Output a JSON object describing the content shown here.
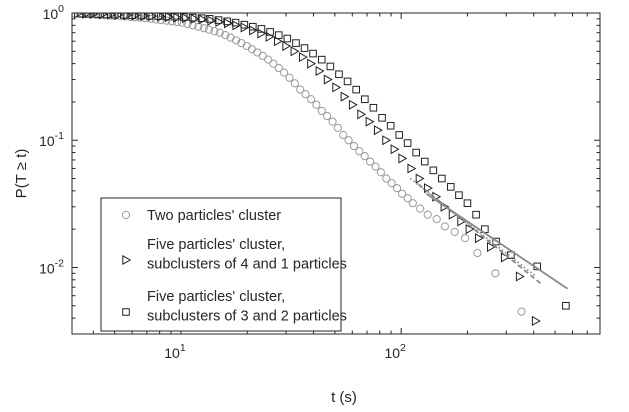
{
  "chart_data": {
    "type": "scatter",
    "title": "",
    "xlabel": "t (s)",
    "ylabel": "P(T ≥ t)",
    "xscale": "log",
    "yscale": "log",
    "xlim": [
      3.2,
      800
    ],
    "ylim": [
      0.003,
      1.0
    ],
    "grid": false,
    "legend_position": "bottom-left",
    "xticks": [
      {
        "value": 10,
        "base": "10",
        "exp": "1"
      },
      {
        "value": 100,
        "base": "10",
        "exp": "2"
      }
    ],
    "yticks": [
      {
        "value": 0.01,
        "base": "10",
        "exp": "-2"
      },
      {
        "value": 0.1,
        "base": "10",
        "exp": "-1"
      },
      {
        "value": 1,
        "base": "10",
        "exp": "0"
      }
    ],
    "series": [
      {
        "name": "Two particles' cluster",
        "marker": "circle",
        "color": "#9a9a9a",
        "points": [
          [
            3.3,
            0.99
          ],
          [
            3.5,
            0.985
          ],
          [
            3.7,
            0.98
          ],
          [
            3.9,
            0.975
          ],
          [
            4.1,
            0.97
          ],
          [
            4.3,
            0.965
          ],
          [
            4.5,
            0.96
          ],
          [
            4.8,
            0.955
          ],
          [
            5.0,
            0.95
          ],
          [
            5.3,
            0.945
          ],
          [
            5.6,
            0.94
          ],
          [
            5.9,
            0.93
          ],
          [
            6.2,
            0.925
          ],
          [
            6.5,
            0.92
          ],
          [
            6.9,
            0.91
          ],
          [
            7.3,
            0.9
          ],
          [
            7.7,
            0.89
          ],
          [
            8.1,
            0.88
          ],
          [
            8.6,
            0.87
          ],
          [
            9.1,
            0.86
          ],
          [
            9.6,
            0.85
          ],
          [
            10.1,
            0.84
          ],
          [
            10.7,
            0.82
          ],
          [
            11.3,
            0.8
          ],
          [
            12.0,
            0.78
          ],
          [
            12.7,
            0.76
          ],
          [
            13.4,
            0.74
          ],
          [
            14.2,
            0.72
          ],
          [
            15.0,
            0.7
          ],
          [
            15.9,
            0.67
          ],
          [
            16.8,
            0.64
          ],
          [
            17.8,
            0.61
          ],
          [
            18.8,
            0.58
          ],
          [
            19.9,
            0.55
          ],
          [
            21.0,
            0.52
          ],
          [
            22.2,
            0.49
          ],
          [
            23.5,
            0.46
          ],
          [
            24.9,
            0.43
          ],
          [
            26.3,
            0.4
          ],
          [
            27.8,
            0.37
          ],
          [
            29.4,
            0.34
          ],
          [
            31.1,
            0.31
          ],
          [
            32.9,
            0.28
          ],
          [
            34.8,
            0.25
          ],
          [
            36.8,
            0.23
          ],
          [
            39.0,
            0.21
          ],
          [
            41.2,
            0.19
          ],
          [
            43.6,
            0.17
          ],
          [
            46.1,
            0.155
          ],
          [
            48.8,
            0.14
          ],
          [
            51.6,
            0.125
          ],
          [
            54.6,
            0.11
          ],
          [
            57.7,
            0.1
          ],
          [
            61.1,
            0.09
          ],
          [
            64.6,
            0.082
          ],
          [
            68.3,
            0.075
          ],
          [
            72.3,
            0.068
          ],
          [
            76.5,
            0.062
          ],
          [
            80.9,
            0.056
          ],
          [
            85.6,
            0.05
          ],
          [
            90.5,
            0.046
          ],
          [
            95.8,
            0.042
          ],
          [
            101,
            0.038
          ],
          [
            107,
            0.035
          ],
          [
            113,
            0.032
          ],
          [
            122,
            0.029
          ],
          [
            132,
            0.026
          ],
          [
            145,
            0.024
          ],
          [
            158,
            0.021
          ],
          [
            175,
            0.019
          ],
          [
            195,
            0.017
          ],
          [
            222,
            0.013
          ],
          [
            268,
            0.009
          ],
          [
            352,
            0.0045
          ]
        ]
      },
      {
        "name": "Five particles' cluster, subclusters of 4 and 1 particles",
        "name_lines": [
          "Five particles' cluster,",
          "subclusters of 4 and 1 particles"
        ],
        "marker": "triangle-right",
        "color": "#222222",
        "points": [
          [
            3.4,
            0.99
          ],
          [
            3.7,
            0.985
          ],
          [
            4.0,
            0.98
          ],
          [
            4.4,
            0.975
          ],
          [
            4.8,
            0.97
          ],
          [
            5.2,
            0.965
          ],
          [
            5.7,
            0.96
          ],
          [
            6.2,
            0.955
          ],
          [
            6.8,
            0.95
          ],
          [
            7.4,
            0.945
          ],
          [
            8.1,
            0.94
          ],
          [
            8.8,
            0.93
          ],
          [
            9.6,
            0.92
          ],
          [
            10.5,
            0.91
          ],
          [
            11.5,
            0.9
          ],
          [
            12.5,
            0.89
          ],
          [
            13.7,
            0.87
          ],
          [
            14.9,
            0.85
          ],
          [
            16.3,
            0.83
          ],
          [
            17.8,
            0.8
          ],
          [
            19.4,
            0.77
          ],
          [
            21.2,
            0.73
          ],
          [
            23.1,
            0.69
          ],
          [
            25.2,
            0.65
          ],
          [
            27.5,
            0.6
          ],
          [
            30.0,
            0.55
          ],
          [
            32.7,
            0.5
          ],
          [
            35.7,
            0.45
          ],
          [
            38.9,
            0.4
          ],
          [
            42.5,
            0.35
          ],
          [
            46.3,
            0.3
          ],
          [
            50.6,
            0.26
          ],
          [
            55.2,
            0.22
          ],
          [
            60.2,
            0.19
          ],
          [
            65.7,
            0.16
          ],
          [
            71.7,
            0.14
          ],
          [
            78.2,
            0.12
          ],
          [
            85.3,
            0.1
          ],
          [
            93.1,
            0.085
          ],
          [
            101,
            0.072
          ],
          [
            111,
            0.06
          ],
          [
            121,
            0.05
          ],
          [
            132,
            0.042
          ],
          [
            144,
            0.036
          ],
          [
            157,
            0.03
          ],
          [
            171,
            0.026
          ],
          [
            187,
            0.023
          ],
          [
            204,
            0.02
          ],
          [
            225,
            0.017
          ],
          [
            255,
            0.0145
          ],
          [
            295,
            0.012
          ],
          [
            345,
            0.0085
          ],
          [
            408,
            0.0038
          ]
        ]
      },
      {
        "name": "Five particles' cluster, subclusters of 3 and 2 particles",
        "name_lines": [
          "Five particles' cluster,",
          "subclusters of 3 and 2 particles"
        ],
        "marker": "square",
        "color": "#222222",
        "points": [
          [
            3.5,
            0.99
          ],
          [
            3.8,
            0.985
          ],
          [
            4.2,
            0.98
          ],
          [
            4.6,
            0.975
          ],
          [
            5.0,
            0.97
          ],
          [
            5.5,
            0.965
          ],
          [
            6.0,
            0.96
          ],
          [
            6.6,
            0.955
          ],
          [
            7.2,
            0.95
          ],
          [
            7.9,
            0.945
          ],
          [
            8.6,
            0.94
          ],
          [
            9.4,
            0.935
          ],
          [
            10.3,
            0.93
          ],
          [
            11.3,
            0.92
          ],
          [
            12.4,
            0.91
          ],
          [
            13.5,
            0.9
          ],
          [
            14.8,
            0.88
          ],
          [
            16.2,
            0.86
          ],
          [
            17.7,
            0.84
          ],
          [
            19.4,
            0.81
          ],
          [
            21.2,
            0.78
          ],
          [
            23.2,
            0.75
          ],
          [
            25.4,
            0.71
          ],
          [
            27.8,
            0.67
          ],
          [
            30.4,
            0.63
          ],
          [
            33.3,
            0.58
          ],
          [
            36.4,
            0.53
          ],
          [
            39.8,
            0.48
          ],
          [
            43.6,
            0.43
          ],
          [
            47.7,
            0.38
          ],
          [
            52.2,
            0.33
          ],
          [
            57.1,
            0.29
          ],
          [
            62.5,
            0.25
          ],
          [
            68.4,
            0.21
          ],
          [
            74.8,
            0.18
          ],
          [
            81.9,
            0.15
          ],
          [
            89.6,
            0.13
          ],
          [
            98.0,
            0.11
          ],
          [
            107,
            0.095
          ],
          [
            117,
            0.08
          ],
          [
            128,
            0.068
          ],
          [
            140,
            0.058
          ],
          [
            153,
            0.05
          ],
          [
            168,
            0.043
          ],
          [
            183,
            0.037
          ],
          [
            200,
            0.032
          ],
          [
            219,
            0.026
          ],
          [
            240,
            0.02
          ],
          [
            270,
            0.016
          ],
          [
            315,
            0.0125
          ],
          [
            415,
            0.0102
          ],
          [
            560,
            0.005
          ]
        ]
      }
    ],
    "fit_lines": [
      {
        "style": "solid",
        "color": "#8a8a8a",
        "x": [
          130,
          570
        ],
        "y": [
          0.038,
          0.0068
        ]
      },
      {
        "style": "dotted",
        "color": "#8a8a8a",
        "x": [
          110,
          410
        ],
        "y": [
          0.05,
          0.0085
        ]
      },
      {
        "style": "dashed",
        "color": "#8a8a8a",
        "x": [
          120,
          430
        ],
        "y": [
          0.045,
          0.0075
        ]
      }
    ]
  }
}
